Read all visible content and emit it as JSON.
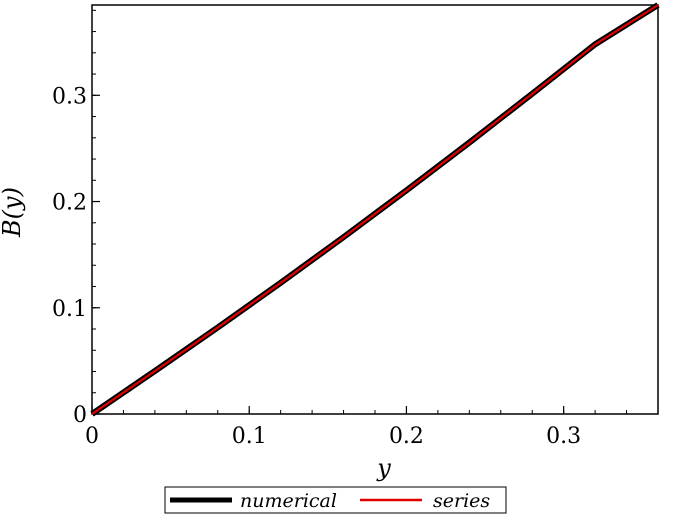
{
  "chart_data": {
    "type": "line",
    "xlabel": "y",
    "ylabel": "B(y)",
    "xlim": [
      0,
      0.36
    ],
    "ylim": [
      0,
      0.385
    ],
    "x_ticks": [
      0,
      0.1,
      0.2,
      0.3
    ],
    "x_tick_labels": [
      "0",
      "0.1",
      "0.2",
      "0.3"
    ],
    "y_ticks": [
      0,
      0.1,
      0.2,
      0.3
    ],
    "y_tick_labels": [
      "0",
      "0.1",
      "0.2",
      "0.3"
    ],
    "x_minor_step": 0.02,
    "y_minor_step": 0.02,
    "grid": false,
    "legend_position": "bottom",
    "series": [
      {
        "name": "numerical",
        "color": "#000000",
        "x": [
          0,
          0.04,
          0.08,
          0.12,
          0.16,
          0.2,
          0.24,
          0.28,
          0.32,
          0.36
        ],
        "y": [
          0,
          0.0405,
          0.0815,
          0.1235,
          0.1665,
          0.2105,
          0.2555,
          0.3015,
          0.348,
          0.385
        ]
      },
      {
        "name": "series",
        "color": "#e00000",
        "x": [
          0,
          0.04,
          0.08,
          0.12,
          0.16,
          0.2,
          0.24,
          0.28,
          0.32,
          0.36
        ],
        "y": [
          0,
          0.0405,
          0.0815,
          0.1235,
          0.1665,
          0.2105,
          0.2555,
          0.3015,
          0.348,
          0.385
        ]
      }
    ]
  }
}
